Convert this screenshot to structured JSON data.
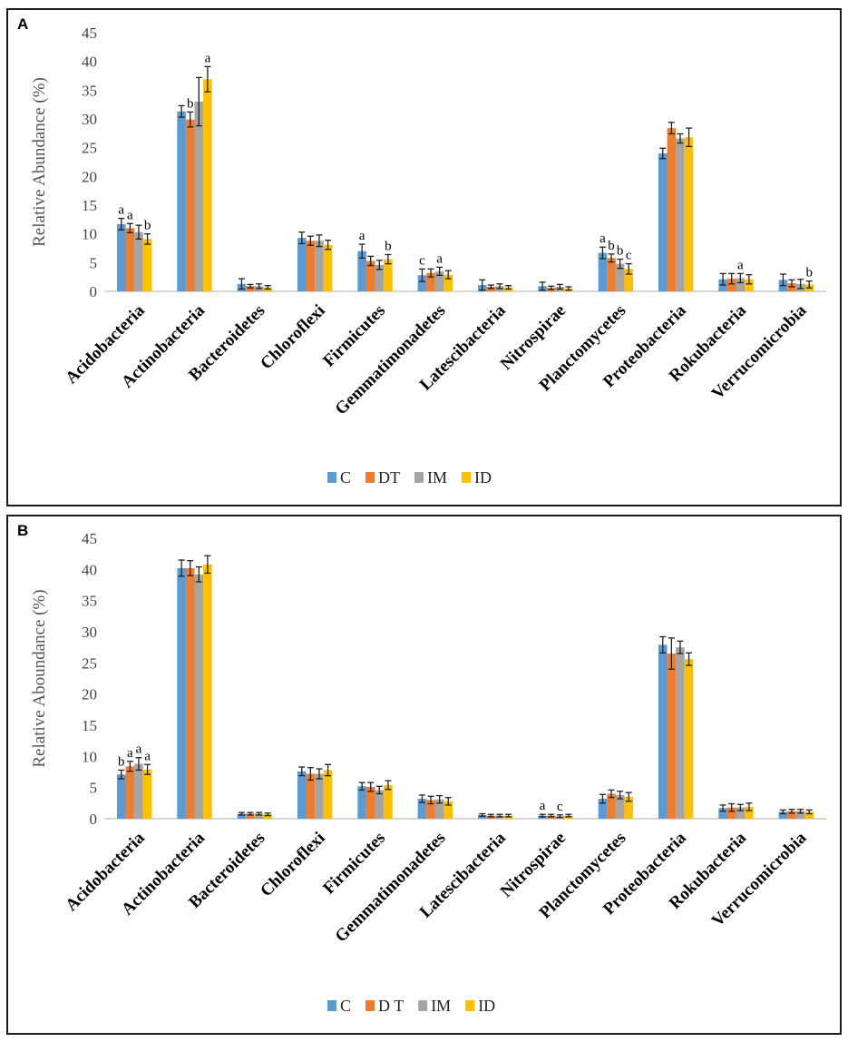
{
  "colors": {
    "C": "#5b9bd5",
    "DT": "#ed7d31",
    "IM": "#a5a5a5",
    "ID": "#ffc000"
  },
  "chart_data": [
    {
      "panel": "A",
      "type": "bar",
      "ylabel": "Relative Abundance (%)",
      "ylim": [
        0,
        45
      ],
      "yticks": [
        0,
        5,
        10,
        15,
        20,
        25,
        30,
        35,
        40,
        45
      ],
      "categories": [
        "Acidobacteria",
        "Actinobacteria",
        "Bacteroidetes",
        "Chloroflexi",
        "Firmicutes",
        "Gemmatimonadetes",
        "Latescibacteria",
        "Nitrospirae",
        "Planctomycetes",
        "Proteobacteria",
        "Rokubacteria",
        "Verrucomicrobia"
      ],
      "series": [
        {
          "name": "C",
          "color_key": "C",
          "values": [
            11.7,
            31.3,
            1.3,
            9.3,
            7.0,
            2.8,
            1.1,
            0.9,
            6.7,
            24.0,
            2.1,
            2.0
          ],
          "errors": [
            1.0,
            1.0,
            0.9,
            1.0,
            1.2,
            1.1,
            0.9,
            0.7,
            1.0,
            0.9,
            1.0,
            1.0
          ]
        },
        {
          "name": "DT",
          "color_key": "DT",
          "values": [
            11.0,
            29.9,
            0.9,
            8.8,
            5.3,
            3.2,
            0.8,
            0.6,
            5.8,
            28.4,
            2.2,
            1.4
          ],
          "errors": [
            0.8,
            1.3,
            0.3,
            0.8,
            0.8,
            0.7,
            0.3,
            0.3,
            0.7,
            1.0,
            0.9,
            0.6
          ]
        },
        {
          "name": "IM",
          "color_key": "IM",
          "values": [
            10.3,
            33.0,
            0.9,
            8.8,
            4.6,
            3.5,
            0.9,
            0.8,
            4.8,
            26.6,
            2.3,
            1.3
          ],
          "errors": [
            1.2,
            4.2,
            0.4,
            1.0,
            0.8,
            0.7,
            0.4,
            0.4,
            0.8,
            0.8,
            0.8,
            0.8
          ]
        },
        {
          "name": "ID",
          "color_key": "ID",
          "values": [
            9.1,
            36.9,
            0.7,
            8.1,
            5.6,
            2.9,
            0.7,
            0.5,
            3.9,
            26.8,
            2.1,
            1.2
          ],
          "errors": [
            0.9,
            2.2,
            0.3,
            0.8,
            0.8,
            0.7,
            0.3,
            0.3,
            0.9,
            1.6,
            0.8,
            0.6
          ]
        }
      ],
      "annotations": [
        {
          "cat": 0,
          "series": 0,
          "text": "a"
        },
        {
          "cat": 0,
          "series": 1,
          "text": "a"
        },
        {
          "cat": 0,
          "series": 3,
          "text": "b"
        },
        {
          "cat": 1,
          "series": 1,
          "text": "b"
        },
        {
          "cat": 1,
          "series": 3,
          "text": "a"
        },
        {
          "cat": 4,
          "series": 0,
          "text": "a"
        },
        {
          "cat": 4,
          "series": 3,
          "text": "b"
        },
        {
          "cat": 5,
          "series": 0,
          "text": "c"
        },
        {
          "cat": 5,
          "series": 2,
          "text": "a"
        },
        {
          "cat": 8,
          "series": 0,
          "text": "a"
        },
        {
          "cat": 8,
          "series": 1,
          "text": "b"
        },
        {
          "cat": 8,
          "series": 2,
          "text": "b"
        },
        {
          "cat": 8,
          "series": 3,
          "text": "c"
        },
        {
          "cat": 10,
          "series": 2,
          "text": "a"
        },
        {
          "cat": 11,
          "series": 3,
          "text": "b"
        }
      ],
      "legend": [
        "C",
        "DT",
        "IM",
        "ID"
      ],
      "legend_position": "bottom"
    },
    {
      "panel": "B",
      "type": "bar",
      "ylabel": "Relative Aboundance (%)",
      "ylim": [
        0,
        45
      ],
      "yticks": [
        0,
        5,
        10,
        15,
        20,
        25,
        30,
        35,
        40,
        45
      ],
      "categories": [
        "Acidobacteria",
        "Actinobacteria",
        "Bacteroidetes",
        "Chloroflexi",
        "Firmicutes",
        "Gemmatimonadetes",
        "Latescibacteria",
        "Nitrospirae",
        "Planctomycetes",
        "Proteobacteria",
        "Rokubacteria",
        "Verrucomicrobia"
      ],
      "series": [
        {
          "name": "C",
          "color_key": "C",
          "values": [
            7.1,
            40.2,
            0.8,
            7.6,
            5.2,
            3.2,
            0.6,
            0.5,
            3.2,
            27.9,
            1.7,
            1.1
          ],
          "errors": [
            0.7,
            1.3,
            0.2,
            0.7,
            0.6,
            0.6,
            0.2,
            0.2,
            0.7,
            1.3,
            0.5,
            0.3
          ]
        },
        {
          "name": "DT",
          "color_key": "DT",
          "values": [
            8.4,
            40.2,
            0.8,
            7.2,
            5.1,
            3.0,
            0.5,
            0.5,
            4.0,
            26.5,
            1.8,
            1.2
          ],
          "errors": [
            0.8,
            1.2,
            0.2,
            1.0,
            0.7,
            0.6,
            0.2,
            0.2,
            0.6,
            2.5,
            0.6,
            0.3
          ]
        },
        {
          "name": "IM",
          "color_key": "IM",
          "values": [
            8.8,
            39.2,
            0.8,
            7.2,
            4.6,
            3.1,
            0.5,
            0.4,
            3.8,
            27.5,
            1.8,
            1.2
          ],
          "errors": [
            1.0,
            1.2,
            0.2,
            0.8,
            0.6,
            0.6,
            0.2,
            0.2,
            0.6,
            1.0,
            0.5,
            0.3
          ]
        },
        {
          "name": "ID",
          "color_key": "ID",
          "values": [
            7.9,
            40.8,
            0.7,
            7.8,
            5.4,
            2.8,
            0.5,
            0.5,
            3.5,
            25.6,
            1.9,
            1.1
          ],
          "errors": [
            0.8,
            1.4,
            0.2,
            0.9,
            0.7,
            0.6,
            0.2,
            0.2,
            0.7,
            1.0,
            0.6,
            0.3
          ]
        }
      ],
      "annotations": [
        {
          "cat": 0,
          "series": 0,
          "text": "b"
        },
        {
          "cat": 0,
          "series": 1,
          "text": "a"
        },
        {
          "cat": 0,
          "series": 2,
          "text": "a"
        },
        {
          "cat": 0,
          "series": 3,
          "text": "a"
        },
        {
          "cat": 7,
          "series": 0,
          "text": "a"
        },
        {
          "cat": 7,
          "series": 2,
          "text": "c"
        }
      ],
      "legend": [
        "C",
        "D T",
        "IM",
        "ID"
      ],
      "legend_position": "bottom"
    }
  ],
  "panels": {
    "a_label": "A",
    "b_label": "B"
  }
}
